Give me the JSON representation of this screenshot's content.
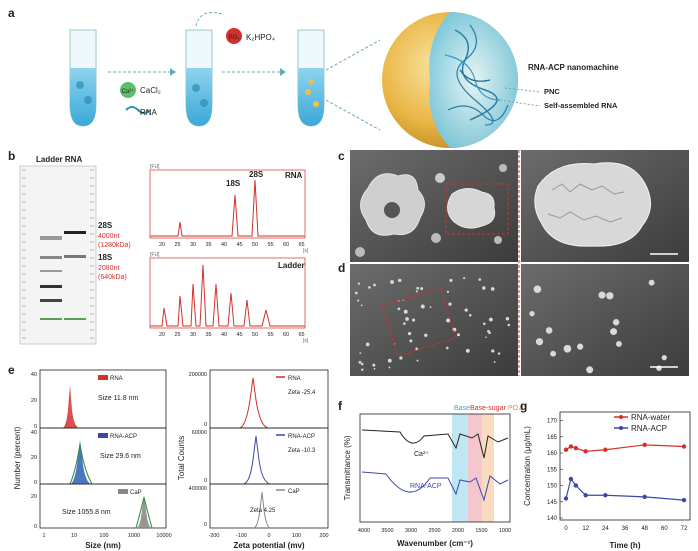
{
  "panel_labels": {
    "a": "a",
    "b": "b",
    "c": "c",
    "d": "d",
    "e": "e",
    "f": "f",
    "g": "g"
  },
  "panel_a": {
    "step1_reagent_icon": "Ca²⁺",
    "step1_reagent": "CaCl₂",
    "step1_rna": "RNA",
    "step2_reagent_icon": "PO₄",
    "step2_reagent": "K₂HPO₄",
    "nanomachine_label": "RNA-ACP nanomachine",
    "pnc_label": "PNC",
    "self_assembled_label": "Self-assembled RNA"
  },
  "panel_b": {
    "gel_title": "Ladder RNA",
    "band_28s": "28S",
    "band_28s_nt": "4000nt",
    "band_28s_kda": "(1280kDa)",
    "band_18s": "18S",
    "band_18s_nt": "2080nt",
    "band_18s_kda": "(640kDa)",
    "rna_trace_label": "RNA",
    "peak_18s": "18S",
    "peak_28s": "28S",
    "ladder_trace_label": "Ladder",
    "y_unit": "[FU]",
    "x_unit": "[s]",
    "x_ticks": [
      "20",
      "25",
      "30",
      "35",
      "40",
      "45",
      "50",
      "55",
      "60",
      "65"
    ]
  },
  "panel_e": {
    "left_ylabel": "Number (percent)",
    "left_xlabel": "Size (nm)",
    "left_x_ticks": [
      "1",
      "10",
      "100",
      "1000",
      "10000"
    ],
    "left_y_ticks_top": [
      "40",
      "20",
      "0"
    ],
    "left_y_ticks_mid": [
      "40",
      "20",
      "0"
    ],
    "left_y_ticks_bot": [
      "20",
      "0"
    ],
    "dls_rna_legend": "RNA",
    "dls_rna_size": "Size 11.8 nm",
    "dls_acp_legend": "RNA-ACP",
    "dls_acp_size": "Size 29.6 nm",
    "dls_cap_legend": "CaP",
    "dls_cap_size": "Size 1055.8 nm",
    "right_ylabel": "Total Counts",
    "right_xlabel": "Zeta potential (mv)",
    "right_x_ticks": [
      "-200",
      "-100",
      "0",
      "100",
      "200"
    ],
    "right_y_ticks": [
      "200000",
      "0",
      "60000",
      "0",
      "400000",
      "0"
    ],
    "zeta_rna_legend": "RNA",
    "zeta_rna_value": "Zeta -25.4",
    "zeta_acp_legend": "RNA-ACP",
    "zeta_acp_value": "Zeta -10.3",
    "zeta_cap_legend": "CaP",
    "zeta_cap_value": "Zeta 4.25"
  },
  "panel_f": {
    "band_base": "Base",
    "band_base_sugar": "Base-sugar",
    "band_po4": "PO₄³⁻",
    "ylabel": "Transmittance (%)",
    "xlabel": "Wavenumber (cm⁻¹)",
    "x_ticks": [
      "4000",
      "3500",
      "3000",
      "2500",
      "2000",
      "1500",
      "1000"
    ],
    "trace_top": "Ca²⁺",
    "trace_bottom": "RNA-ACP"
  },
  "panel_g": {
    "legend_water": "RNA-water",
    "legend_acp": "RNA-ACP",
    "ylabel": "Concentration (μg/mL)",
    "xlabel": "Time (h)",
    "y_ticks": [
      "170",
      "165",
      "160",
      "155",
      "150",
      "145",
      "140"
    ],
    "x_ticks": [
      "0",
      "12",
      "24",
      "36",
      "48",
      "60",
      "72"
    ]
  },
  "chart_data": [
    {
      "type": "line",
      "title": "",
      "xlabel": "Time (h)",
      "ylabel": "Concentration (μg/mL)",
      "ylim": [
        140,
        172
      ],
      "xlim": [
        0,
        72
      ],
      "series": [
        {
          "name": "RNA-water",
          "color": "#d3302b",
          "x": [
            0,
            3,
            6,
            12,
            24,
            48,
            72
          ],
          "values": [
            161,
            162,
            161.5,
            160.5,
            161,
            162.5,
            162
          ]
        },
        {
          "name": "RNA-ACP",
          "color": "#3b48a8",
          "x": [
            0,
            3,
            6,
            12,
            24,
            48,
            72
          ],
          "values": [
            146,
            152,
            150,
            147,
            147,
            146.5,
            145.5
          ]
        }
      ]
    }
  ]
}
